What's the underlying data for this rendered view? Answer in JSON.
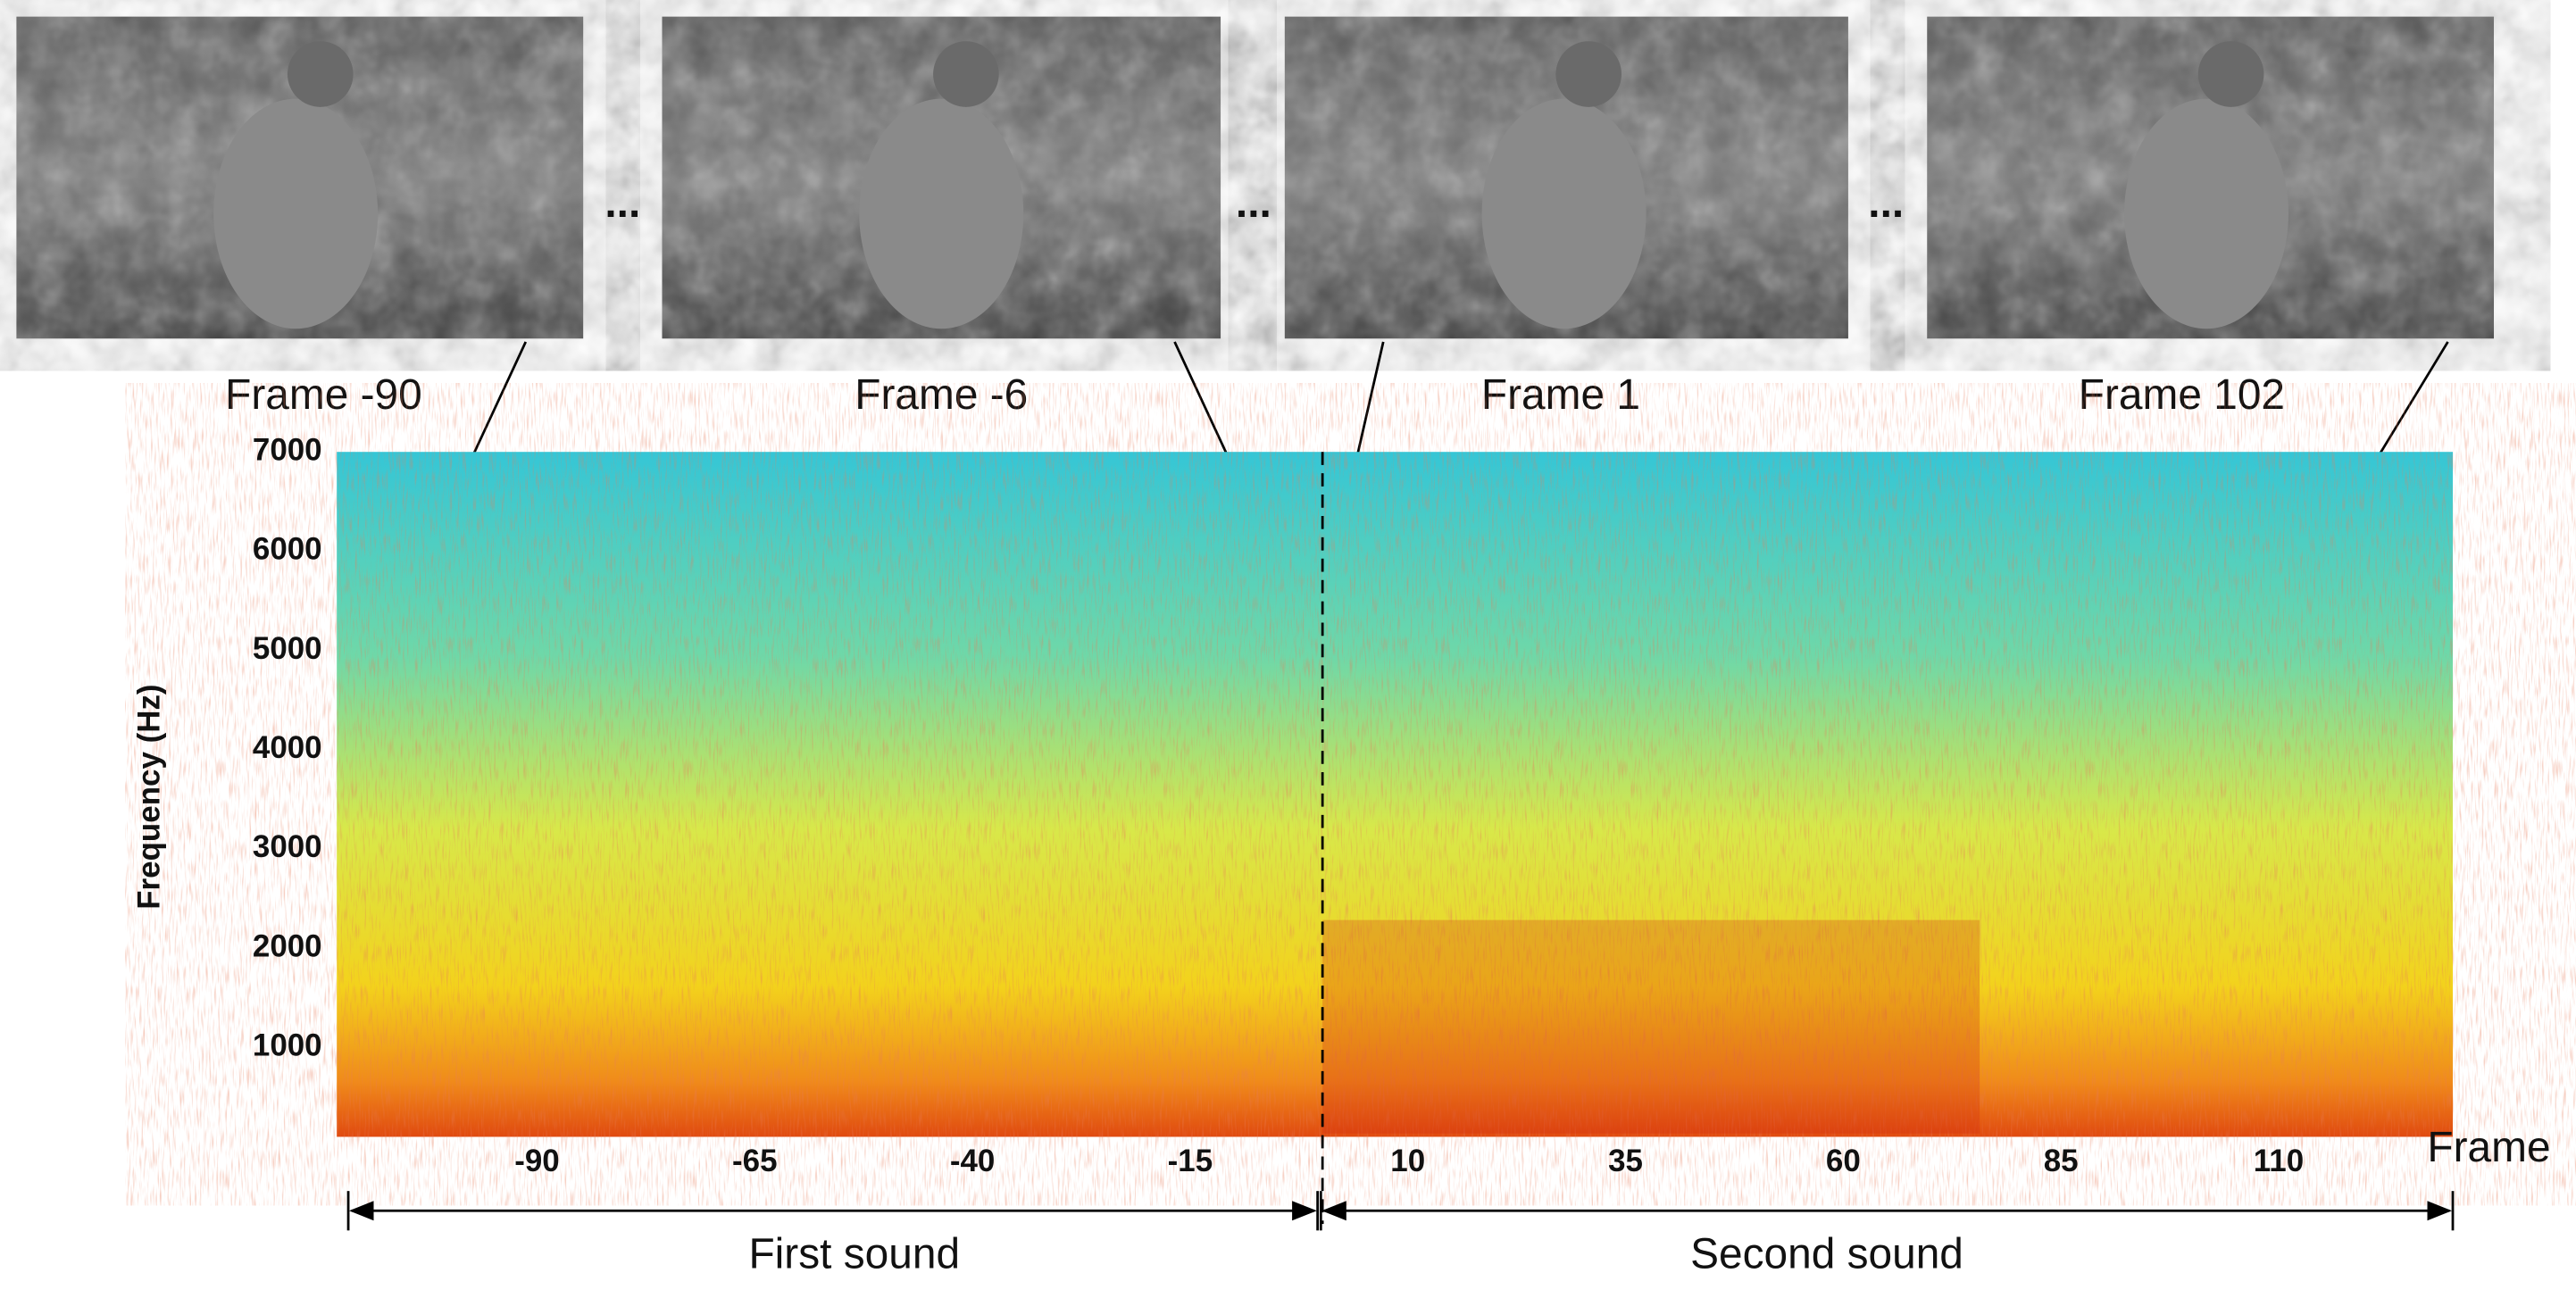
{
  "frames": [
    {
      "label": "Frame -90"
    },
    {
      "label": "Frame -6"
    },
    {
      "label": "Frame 1"
    },
    {
      "label": "Frame 102"
    }
  ],
  "separator": "...",
  "spectrogram": {
    "y_label": "Frequency (Hz)",
    "x_label": "Frame",
    "ylim": [
      0,
      7000
    ],
    "yticks": [
      1000,
      2000,
      3000,
      4000,
      5000,
      6000,
      7000
    ],
    "xlim": [
      -113,
      130
    ],
    "xticks": [
      -90,
      -65,
      -40,
      -15,
      10,
      35,
      60,
      85,
      110
    ]
  },
  "segments": [
    "First sound",
    "Second sound"
  ]
}
